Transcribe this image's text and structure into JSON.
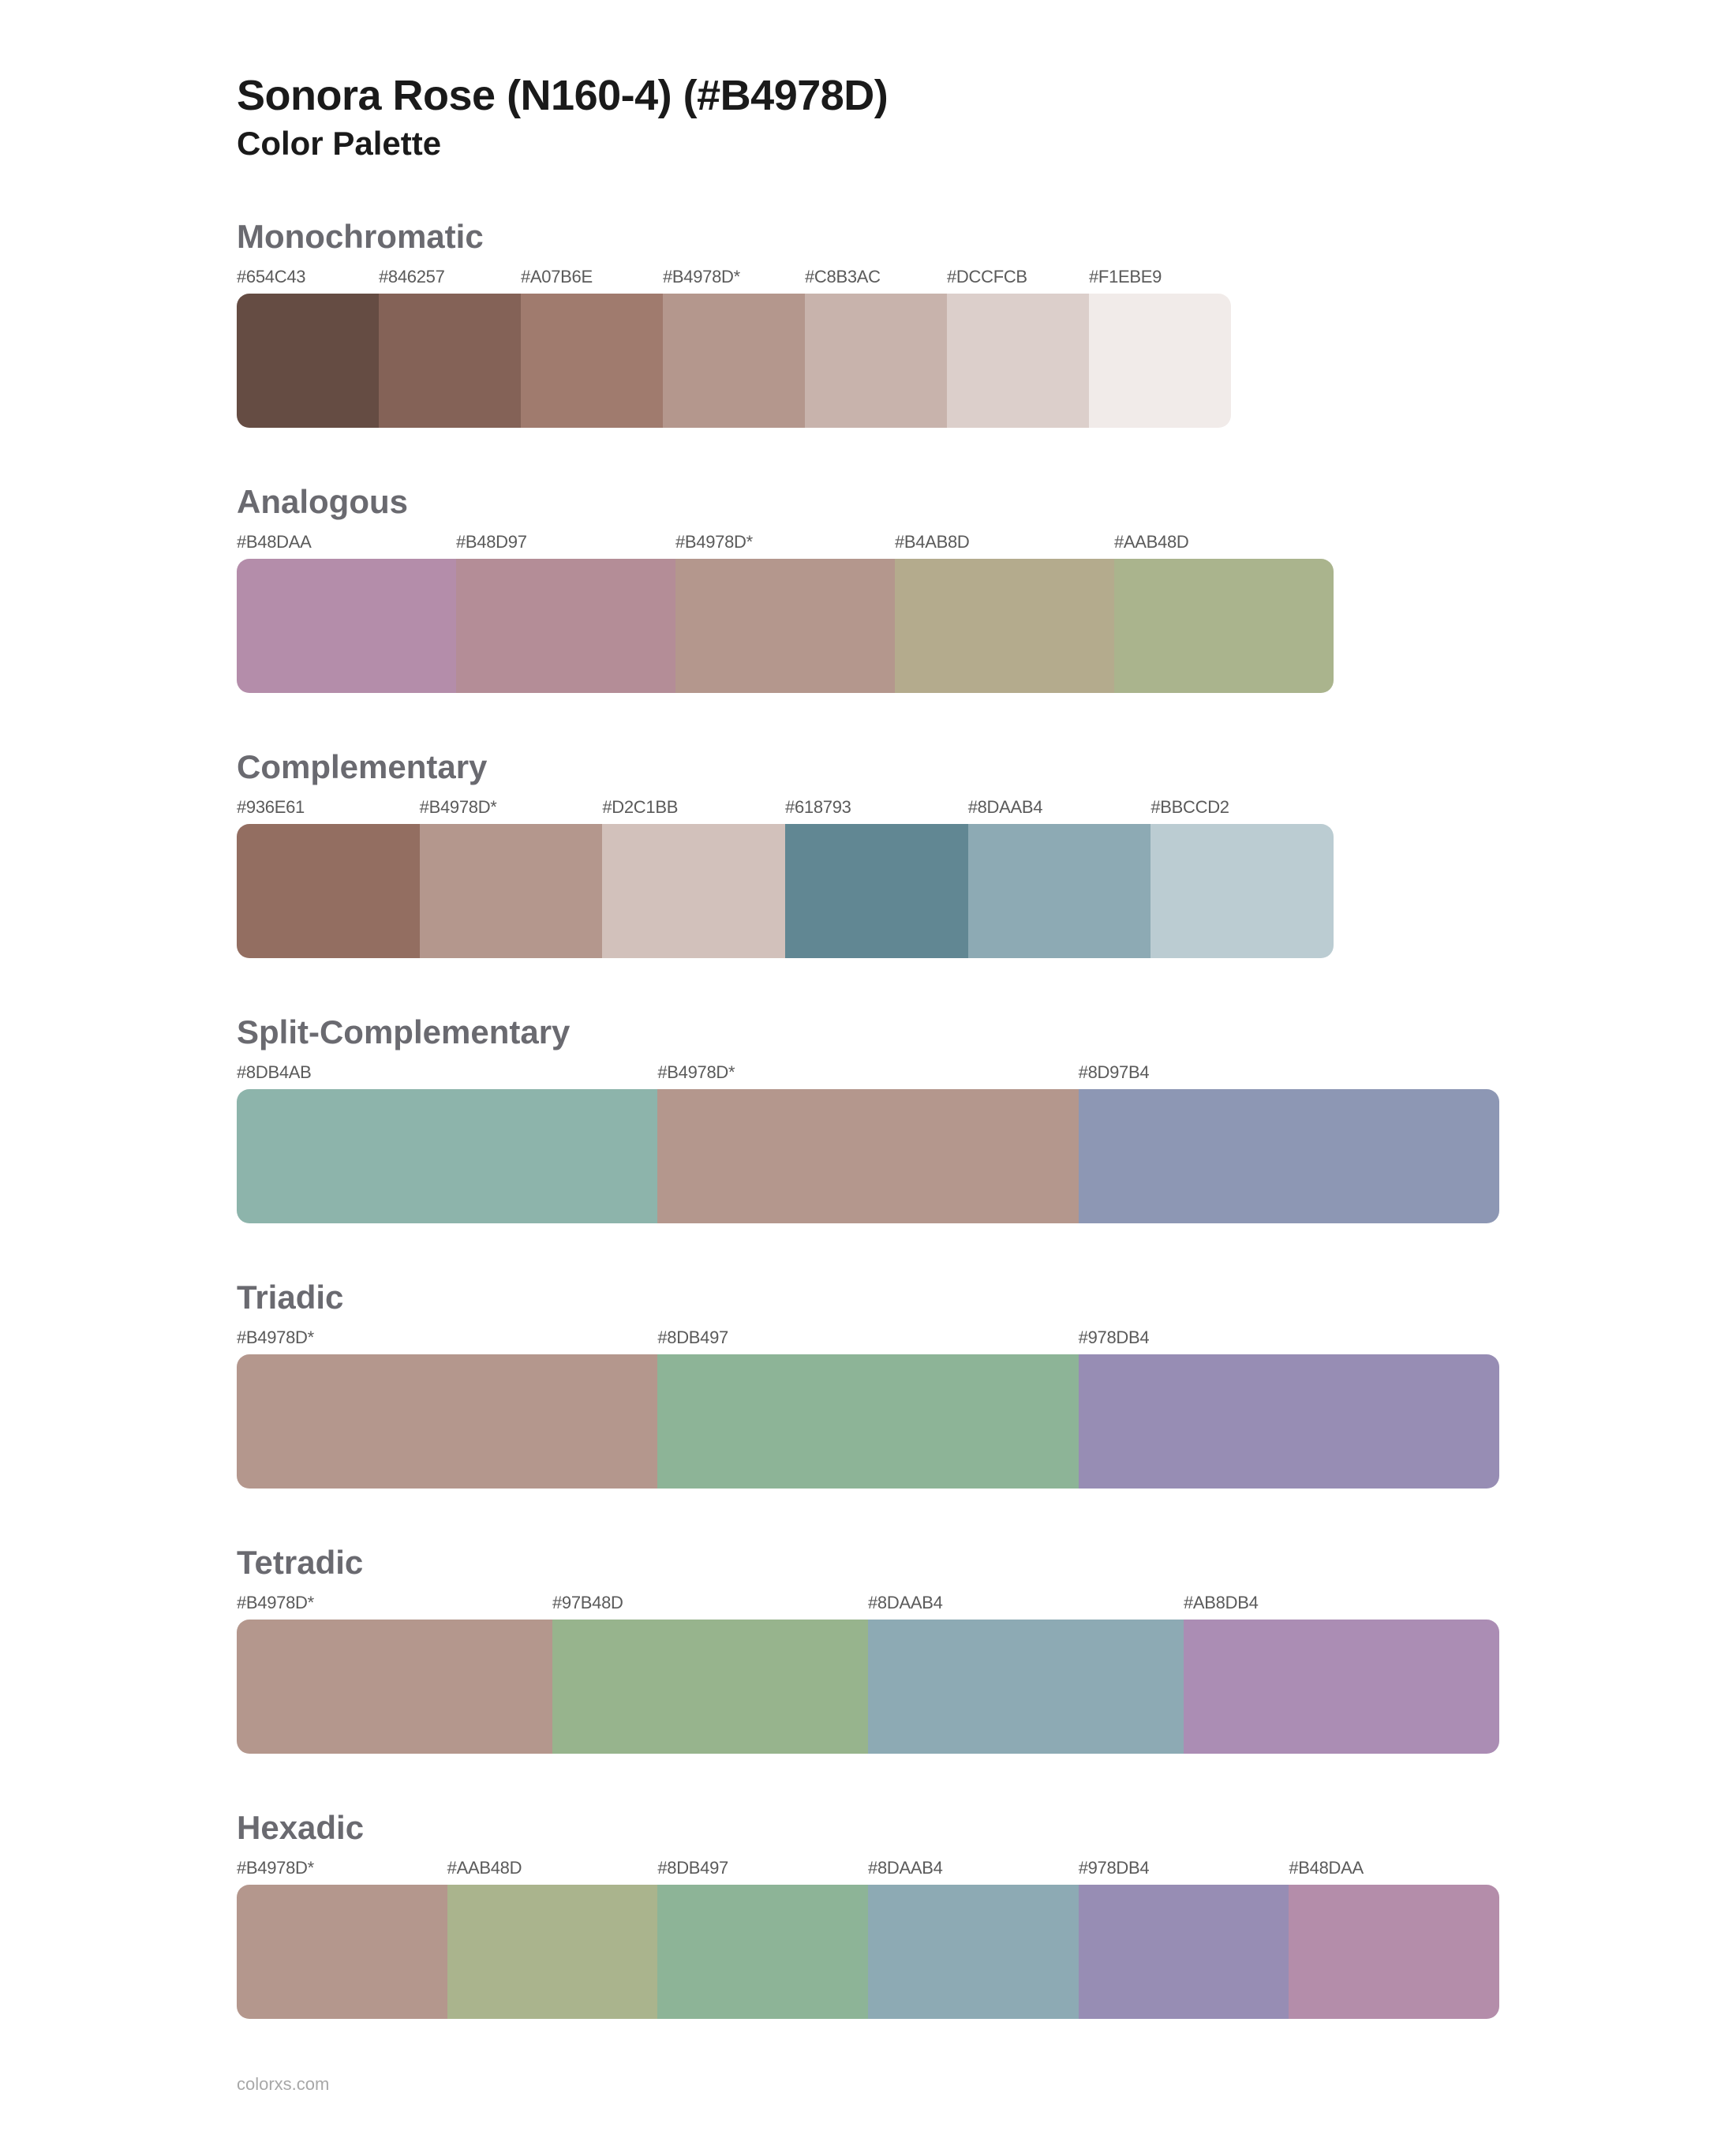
{
  "title": "Sonora Rose (N160-4) (#B4978D)",
  "subtitle": "Color Palette",
  "footer": "colorxs.com",
  "sections": [
    {
      "name": "Monochromatic",
      "width_class": "w-7 partial-1260",
      "swatches": [
        {
          "label": "#654C43",
          "color": "#654C43"
        },
        {
          "label": "#846257",
          "color": "#846257"
        },
        {
          "label": "#A07B6E",
          "color": "#A07B6E"
        },
        {
          "label": "#B4978D*",
          "color": "#B4978D"
        },
        {
          "label": "#C8B3AC",
          "color": "#C8B3AC"
        },
        {
          "label": "#DCCFCB",
          "color": "#DCCFCB"
        },
        {
          "label": "#F1EBE9",
          "color": "#F1EBE9"
        }
      ]
    },
    {
      "name": "Analogous",
      "width_class": "w-5 partial-1390",
      "swatches": [
        {
          "label": "#B48DAA",
          "color": "#B48DAA"
        },
        {
          "label": "#B48D97",
          "color": "#B48D97"
        },
        {
          "label": "#B4978D*",
          "color": "#B4978D"
        },
        {
          "label": "#B4AB8D",
          "color": "#B4AB8D"
        },
        {
          "label": "#AAB48D",
          "color": "#AAB48D"
        }
      ]
    },
    {
      "name": "Complementary",
      "width_class": "w-6 partial-1390",
      "swatches": [
        {
          "label": "#936E61",
          "color": "#936E61"
        },
        {
          "label": "#B4978D*",
          "color": "#B4978D"
        },
        {
          "label": "#D2C1BB",
          "color": "#D2C1BB"
        },
        {
          "label": "#618793",
          "color": "#618793"
        },
        {
          "label": "#8DAAB4",
          "color": "#8DAAB4"
        },
        {
          "label": "#BBCCD2",
          "color": "#BBCCD2"
        }
      ]
    },
    {
      "name": "Split-Complementary",
      "width_class": "w-3",
      "swatches": [
        {
          "label": "#8DB4AB",
          "color": "#8DB4AB"
        },
        {
          "label": "#B4978D*",
          "color": "#B4978D"
        },
        {
          "label": "#8D97B4",
          "color": "#8D97B4"
        }
      ]
    },
    {
      "name": "Triadic",
      "width_class": "w-3",
      "swatches": [
        {
          "label": "#B4978D*",
          "color": "#B4978D"
        },
        {
          "label": "#8DB497",
          "color": "#8DB497"
        },
        {
          "label": "#978DB4",
          "color": "#978DB4"
        }
      ]
    },
    {
      "name": "Tetradic",
      "width_class": "w-4",
      "swatches": [
        {
          "label": "#B4978D*",
          "color": "#B4978D"
        },
        {
          "label": "#97B48D",
          "color": "#97B48D"
        },
        {
          "label": "#8DAAB4",
          "color": "#8DAAB4"
        },
        {
          "label": "#AB8DB4",
          "color": "#AB8DB4"
        }
      ]
    },
    {
      "name": "Hexadic",
      "width_class": "w-6",
      "swatches": [
        {
          "label": "#B4978D*",
          "color": "#B4978D"
        },
        {
          "label": "#AAB48D",
          "color": "#AAB48D"
        },
        {
          "label": "#8DB497",
          "color": "#8DB497"
        },
        {
          "label": "#8DAAB4",
          "color": "#8DAAB4"
        },
        {
          "label": "#978DB4",
          "color": "#978DB4"
        },
        {
          "label": "#B48DAA",
          "color": "#B48DAA"
        }
      ]
    }
  ]
}
